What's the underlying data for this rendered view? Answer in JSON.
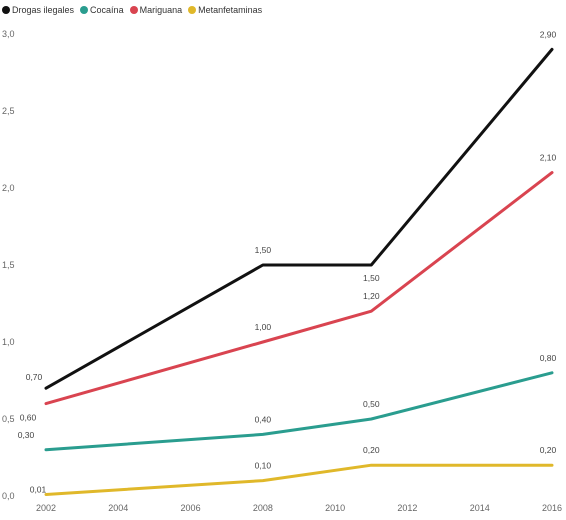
{
  "chart_data": {
    "type": "line",
    "x": [
      2002,
      2008,
      2011,
      2016
    ],
    "xticks": [
      "2002",
      "2004",
      "2006",
      "2008",
      "2010",
      "2012",
      "2014",
      "2016"
    ],
    "xlim": [
      2002,
      2016
    ],
    "ylim": [
      0,
      3
    ],
    "yticks": [
      "0,0",
      "0,5",
      "1,0",
      "1,5",
      "2,0",
      "2,5",
      "3,0"
    ],
    "grid": false,
    "legend": "top-left",
    "series": [
      {
        "name": "Drogas ilegales",
        "color": "#111111",
        "values": [
          0.7,
          1.5,
          1.5,
          2.9
        ],
        "labels": [
          "0,70",
          "1,50",
          "1,50",
          "2,90"
        ]
      },
      {
        "name": "Cocaína",
        "color": "#2a9d8f",
        "values": [
          0.3,
          0.4,
          0.5,
          0.8
        ],
        "labels": [
          "0,30",
          "0,40",
          "0,50",
          "0,80"
        ]
      },
      {
        "name": "Mariguana",
        "color": "#d94450",
        "values": [
          0.6,
          1.0,
          1.2,
          2.1
        ],
        "labels": [
          "0,60",
          "1,00",
          "1,20",
          "2,10"
        ]
      },
      {
        "name": "Metanfetaminas",
        "color": "#e0b82a",
        "values": [
          0.01,
          0.1,
          0.2,
          0.2
        ],
        "labels": [
          "0,01",
          "0,10",
          "0,20",
          "0,20"
        ]
      }
    ]
  }
}
